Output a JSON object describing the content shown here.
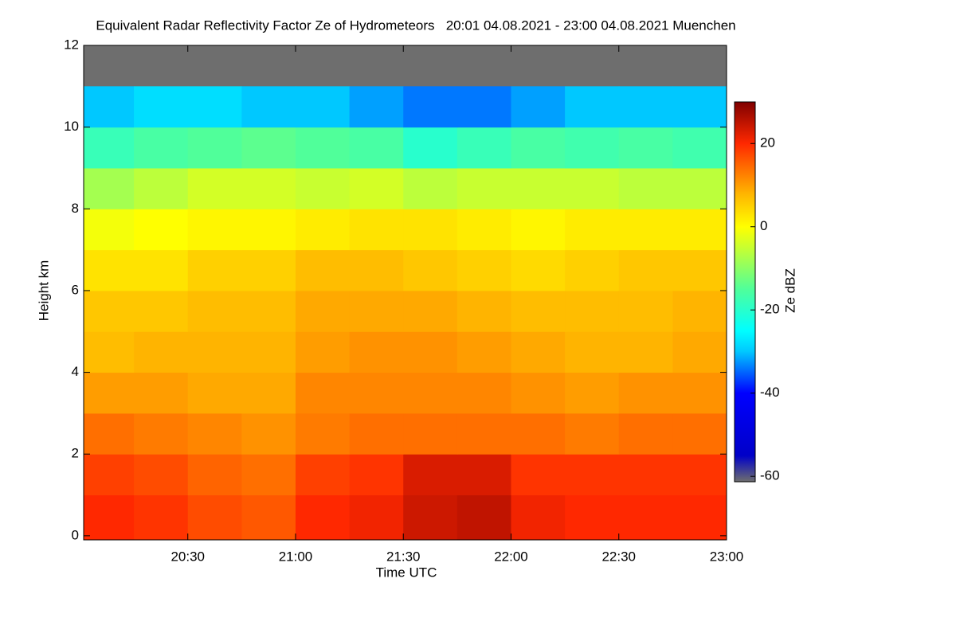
{
  "chart_data": {
    "type": "heatmap",
    "title": "Equivalent Radar Reflectivity Factor Ze of Hydrometeors   20:01 04.08.2021 - 23:00 04.08.2021 Muenchen",
    "x_label": "Time UTC",
    "y_label": "Height km",
    "colorbar_label": "Ze dBZ",
    "x": [
      20.125,
      20.375,
      20.625,
      20.875,
      21.125,
      21.375,
      21.625,
      21.875,
      22.125,
      22.375,
      22.625,
      22.875
    ],
    "y": [
      0.5,
      1.5,
      2.5,
      3.5,
      4.5,
      5.5,
      6.5,
      7.5,
      8.5,
      9.5,
      10.5,
      11.5
    ],
    "z": [
      [
        20,
        19,
        17,
        16,
        20,
        21,
        24,
        25,
        21,
        20,
        20,
        20
      ],
      [
        18,
        17,
        15,
        14,
        18,
        19,
        23,
        23,
        19,
        19,
        19,
        19
      ],
      [
        14,
        13,
        12,
        11,
        13,
        14,
        14,
        14,
        14,
        13,
        14,
        14
      ],
      [
        10,
        10,
        9,
        9,
        12,
        12,
        12,
        12,
        11,
        10,
        11,
        11
      ],
      [
        7,
        8,
        8,
        8,
        10,
        11,
        11,
        10,
        9,
        8,
        8,
        9
      ],
      [
        6,
        6,
        7,
        7,
        9,
        9,
        9,
        8,
        7,
        7,
        7,
        8
      ],
      [
        3,
        3,
        5,
        5,
        7,
        7,
        6,
        5,
        4,
        5,
        6,
        6
      ],
      [
        -1,
        0,
        1,
        1,
        2,
        3,
        3,
        2,
        1,
        2,
        2,
        2
      ],
      [
        -8,
        -6,
        -4,
        -4,
        -5,
        -4,
        -6,
        -5,
        -5,
        -5,
        -6,
        -6
      ],
      [
        -18,
        -16,
        -15,
        -14,
        -15,
        -16,
        -20,
        -18,
        -16,
        -17,
        -16,
        -17
      ],
      [
        -30,
        -28,
        -28,
        -30,
        -30,
        -32,
        -34,
        -34,
        -32,
        -30,
        -30,
        -30
      ],
      [
        null,
        null,
        null,
        null,
        null,
        null,
        null,
        null,
        null,
        null,
        null,
        null
      ]
    ],
    "xlim": [
      20.0167,
      23.0
    ],
    "xticks": [
      {
        "value": 20.5,
        "label": "20:30"
      },
      {
        "value": 21,
        "label": "21:00"
      },
      {
        "value": 21.5,
        "label": "21:30"
      },
      {
        "value": 22,
        "label": "22:00"
      },
      {
        "value": 22.5,
        "label": "22:30"
      },
      {
        "value": 23,
        "label": "23:00"
      }
    ],
    "ylim": [
      -0.1,
      12
    ],
    "yticks": [
      0,
      2,
      4,
      6,
      8,
      10,
      12
    ],
    "clim": [
      -61.3,
      30
    ],
    "cticks": [
      -60,
      -40,
      -20,
      0,
      20
    ],
    "missing_color": "#6e6e6e"
  }
}
